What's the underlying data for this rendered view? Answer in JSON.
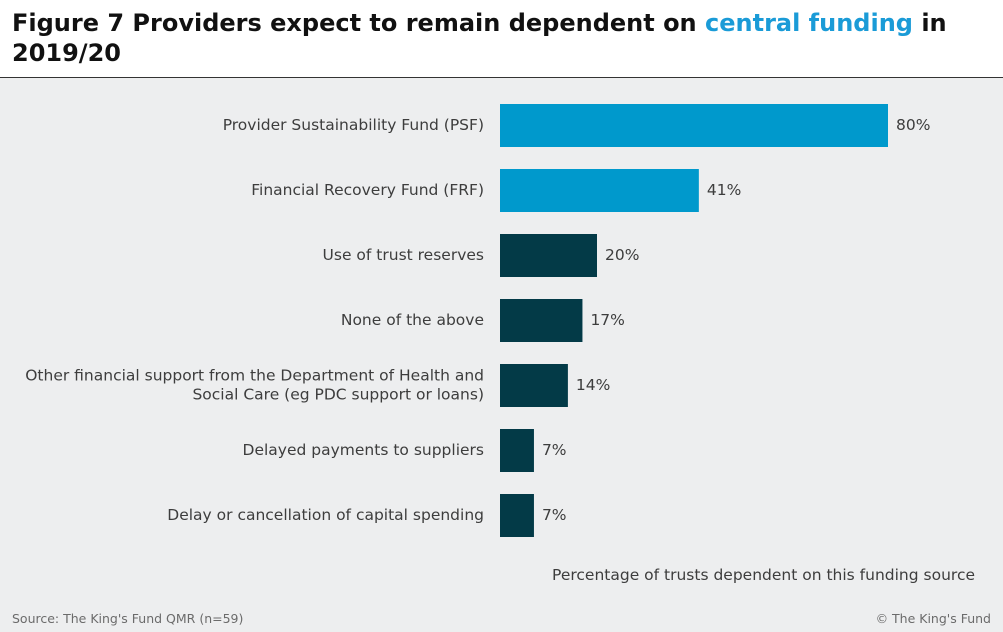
{
  "title": {
    "prefix": "Figure 7 Providers expect to remain dependent on ",
    "highlight": "central funding",
    "suffix": " in 2019/20"
  },
  "colors": {
    "highlight": "#1a9bd7",
    "bar_light": "#0099cc",
    "bar_dark": "#033a47",
    "panel": "#edeeef"
  },
  "chart_data": {
    "type": "bar",
    "orientation": "horizontal",
    "categories": [
      "Provider Sustainability Fund (PSF)",
      "Financial Recovery Fund (FRF)",
      "Use of trust reserves",
      "None of the above",
      "Other financial support from the Department of Health and Social Care (eg PDC support or loans)",
      "Delayed payments to suppliers",
      "Delay or cancellation of capital spending"
    ],
    "category_lines": [
      [
        "Provider Sustainability Fund (PSF)"
      ],
      [
        "Financial Recovery Fund (FRF)"
      ],
      [
        "Use of trust reserves"
      ],
      [
        "None of the above"
      ],
      [
        "Other financial support from the Department of Health and",
        "Social Care (eg PDC support or loans)"
      ],
      [
        "Delayed payments to suppliers"
      ],
      [
        "Delay or cancellation of capital spending"
      ]
    ],
    "values": [
      80,
      41,
      20,
      17,
      14,
      7,
      7
    ],
    "value_labels": [
      "80%",
      "41%",
      "20%",
      "17%",
      "14%",
      "7%",
      "7%"
    ],
    "highlighted": [
      true,
      true,
      false,
      false,
      false,
      false,
      false
    ],
    "xlabel": "Percentage of trusts dependent on this funding source",
    "ylabel": "",
    "xlim": [
      0,
      100
    ],
    "grid": false,
    "legend": "none"
  },
  "footer": {
    "source": "Source: The King's Fund QMR (n=59)",
    "copyright": "© The King's Fund"
  }
}
